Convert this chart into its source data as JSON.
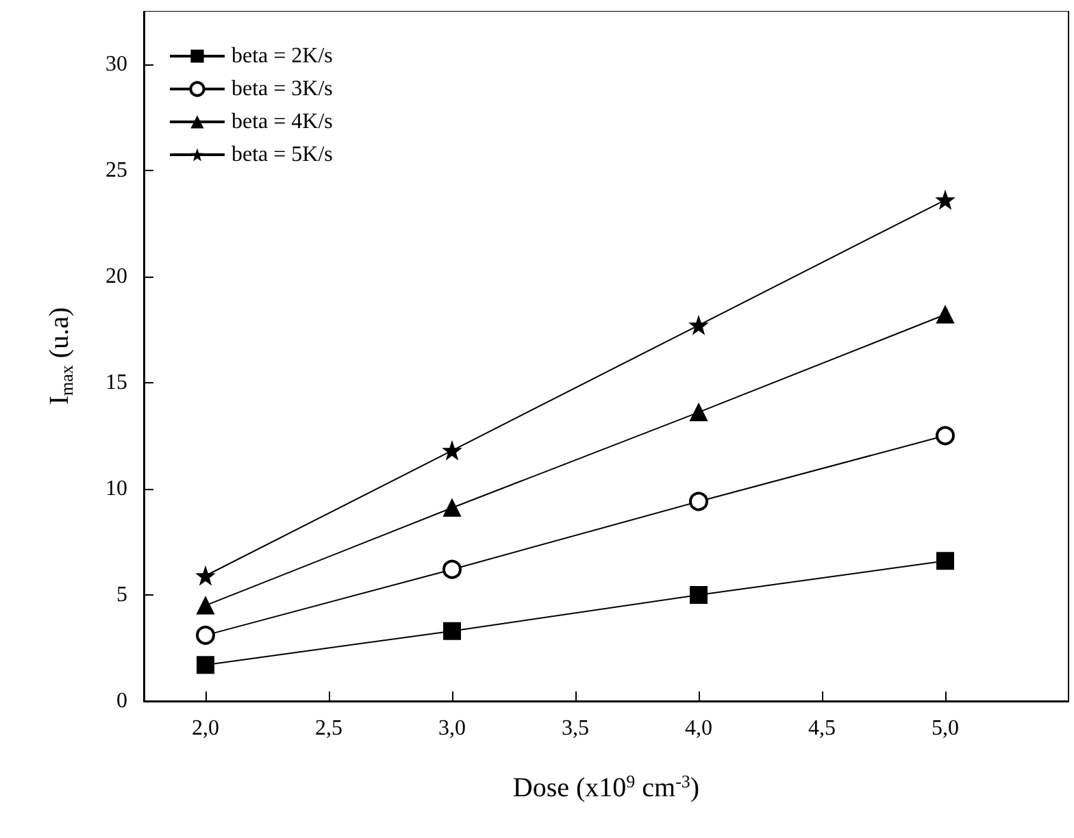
{
  "chart_data": {
    "type": "line",
    "xlabel": "Dose (x10$^{9}$ cm$^{-3}$)",
    "ylabel": "I$_{max}$ (u.a)",
    "x": [
      2.0,
      3.0,
      4.0,
      5.0
    ],
    "xlim": [
      1.75,
      5.5
    ],
    "xticks": [
      {
        "value": 2.0,
        "label": "2,0"
      },
      {
        "value": 2.5,
        "label": "2,5"
      },
      {
        "value": 3.0,
        "label": "3,0"
      },
      {
        "value": 3.5,
        "label": "3,5"
      },
      {
        "value": 4.0,
        "label": "4,0"
      },
      {
        "value": 4.5,
        "label": "4,5"
      },
      {
        "value": 5.0,
        "label": "5,0"
      }
    ],
    "ylim": [
      0,
      32.5
    ],
    "yticks": [
      0,
      5,
      10,
      15,
      20,
      25,
      30
    ],
    "legend": "top left",
    "grid": false,
    "line_style": "solid",
    "series": [
      {
        "name": "beta = 2K/s",
        "color": "#000000",
        "marker": "square",
        "values": [
          1.7,
          3.3,
          5.0,
          6.6
        ]
      },
      {
        "name": "beta = 3K/s",
        "color": "#000000",
        "marker": "circle",
        "values": [
          3.1,
          6.2,
          9.4,
          12.5
        ]
      },
      {
        "name": "beta = 4K/s",
        "color": "#000000",
        "marker": "triangle",
        "values": [
          4.5,
          9.1,
          13.6,
          18.2
        ]
      },
      {
        "name": "beta = 5K/s",
        "color": "#000000",
        "marker": "star",
        "values": [
          5.9,
          11.8,
          17.7,
          23.6
        ]
      }
    ]
  }
}
